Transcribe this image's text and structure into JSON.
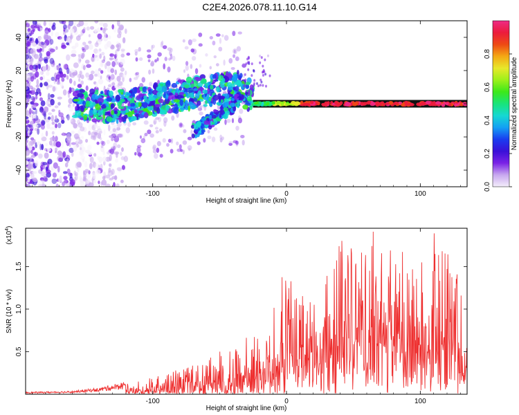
{
  "title": "C2E4.2026.078.11.10.G14",
  "chart_data": [
    {
      "type": "heatmap",
      "name": "spectrogram",
      "xlabel": "Height of straight line (km)",
      "ylabel": "Frequency (Hz)",
      "xlim": [
        -195,
        135
      ],
      "ylim": [
        -50,
        50
      ],
      "xticks": [
        -100,
        0,
        100
      ],
      "yticks": [
        -40,
        -20,
        0,
        20,
        40
      ],
      "colorbar": {
        "label": "Normalized spectral amplitude",
        "range": [
          0,
          1
        ],
        "ticks": [
          0.0,
          0.2,
          0.4,
          0.6,
          0.8
        ],
        "colors": [
          "#f4eefb",
          "#c8a8ef",
          "#7a22e6",
          "#3a10d8",
          "#1a3cf0",
          "#14a0f4",
          "#16d8d2",
          "#19e47a",
          "#3ce81a",
          "#9cf01a",
          "#e8e82a",
          "#f4a814",
          "#ee4a14",
          "#ec1c3c",
          "#ee2a86"
        ]
      },
      "trace": {
        "description": "dominant frequency track (data units: km, Hz)",
        "points": [
          [
            -155,
            0
          ],
          [
            -140,
            -2
          ],
          [
            -120,
            -1
          ],
          [
            -100,
            2
          ],
          [
            -80,
            5
          ],
          [
            -60,
            8
          ],
          [
            -45,
            9
          ],
          [
            -35,
            10
          ],
          [
            -28,
            5
          ],
          [
            -20,
            1
          ],
          [
            0,
            0
          ],
          [
            135,
            0
          ]
        ],
        "branch": [
          [
            -70,
            -17
          ],
          [
            -60,
            -12
          ],
          [
            -50,
            -6
          ],
          [
            -42,
            -2
          ],
          [
            -35,
            3
          ]
        ]
      }
    },
    {
      "type": "line",
      "name": "snr",
      "xlabel": "Height of straight line (km)",
      "ylabel": "SNR (10 * v/v)",
      "multiplier": "(x10",
      "exponent": "4",
      "multiplier_close": ")",
      "xlim": [
        -195,
        135
      ],
      "ylim": [
        0,
        1.95
      ],
      "xticks": [
        -100,
        0,
        100
      ],
      "yticks": [
        0.5,
        1.0,
        1.5
      ],
      "color": "#ee3030",
      "envelope": [
        [
          -195,
          0.02
        ],
        [
          -160,
          0.03
        ],
        [
          -140,
          0.06
        ],
        [
          -120,
          0.12
        ],
        [
          -100,
          0.2
        ],
        [
          -80,
          0.3
        ],
        [
          -60,
          0.4
        ],
        [
          -40,
          0.6
        ],
        [
          -20,
          0.9
        ],
        [
          0,
          1.4
        ],
        [
          20,
          1.1
        ],
        [
          40,
          1.7
        ],
        [
          60,
          1.8
        ],
        [
          80,
          1.7
        ],
        [
          100,
          1.75
        ],
        [
          120,
          1.8
        ],
        [
          135,
          1.2
        ]
      ]
    }
  ]
}
